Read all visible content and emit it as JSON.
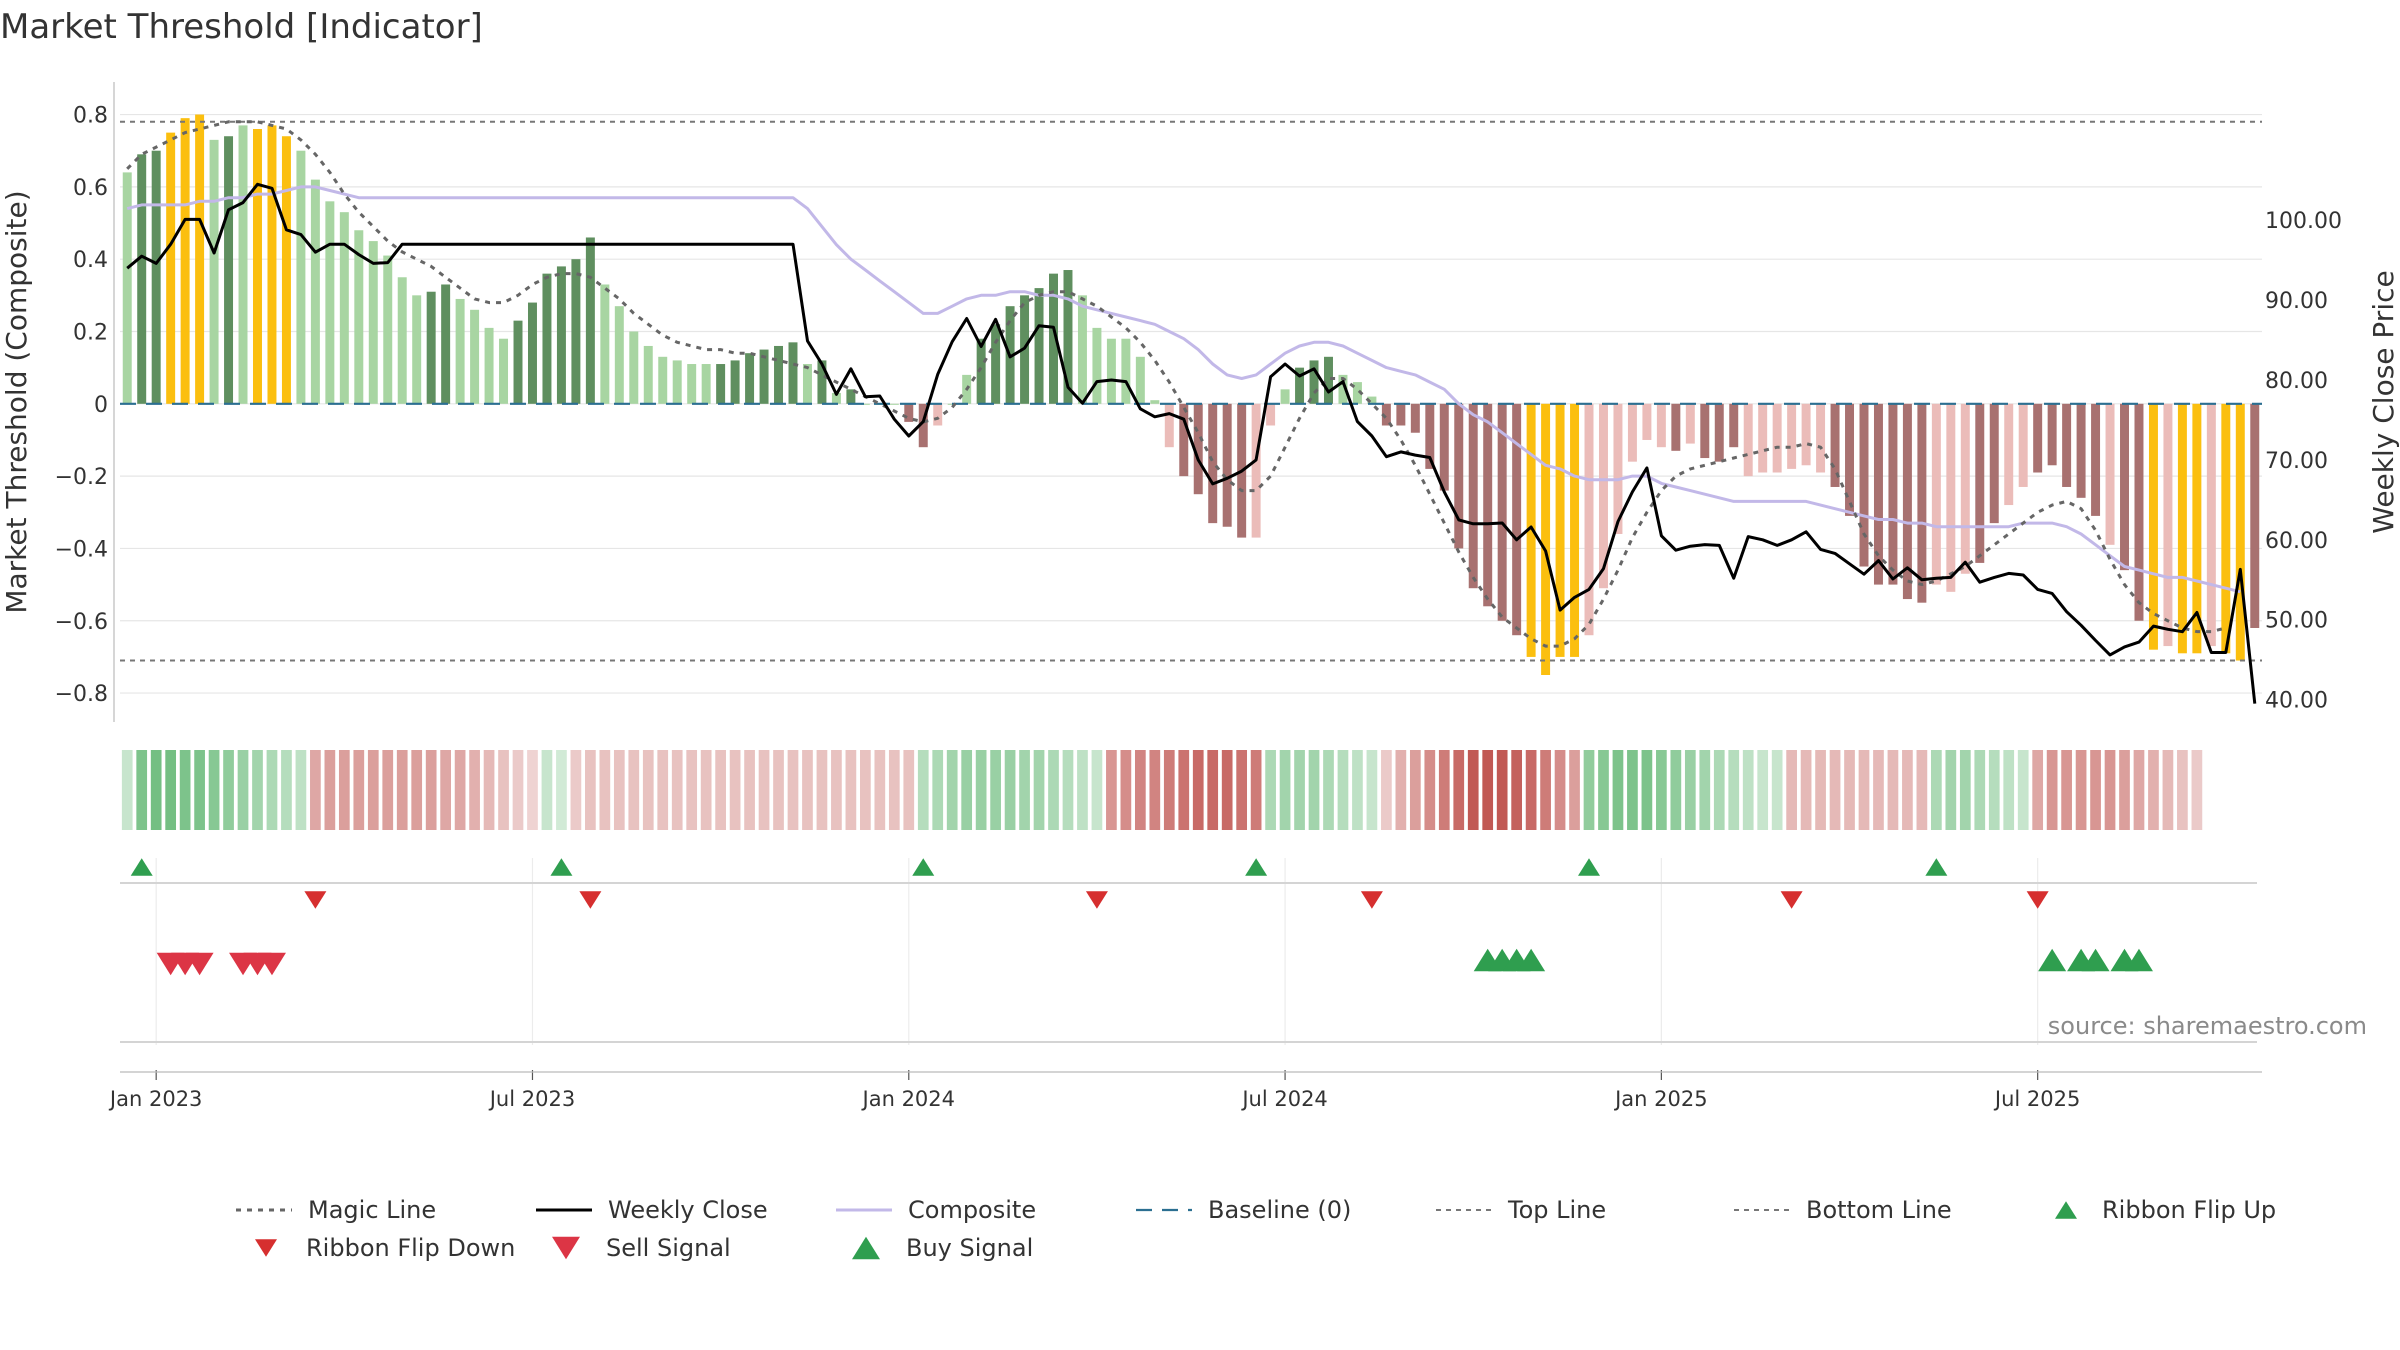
{
  "chart_data": {
    "type": "bar",
    "title": "Market Threshold [Indicator]",
    "ylabel": "Market Threshold (Composite)",
    "ylabel_right": "Weekly Close Price",
    "ylim": [
      -0.88,
      0.89
    ],
    "ylim_right": [
      37.2,
      117.3
    ],
    "yticks": [
      {
        "value": 0.8,
        "label": "0.8"
      },
      {
        "value": 0.6,
        "label": "0.6"
      },
      {
        "value": 0.4,
        "label": "0.4"
      },
      {
        "value": 0.2,
        "label": "0.2"
      },
      {
        "value": 0,
        "label": "0"
      },
      {
        "value": -0.2,
        "label": "−0.2"
      },
      {
        "value": -0.4,
        "label": "−0.4"
      },
      {
        "value": -0.6,
        "label": "−0.6"
      },
      {
        "value": -0.8,
        "label": "−0.8"
      }
    ],
    "yticks_right": [
      {
        "value": 100,
        "label": "100.00"
      },
      {
        "value": 90,
        "label": "90.00"
      },
      {
        "value": 80,
        "label": "80.00"
      },
      {
        "value": 70,
        "label": "70.00"
      },
      {
        "value": 60,
        "label": "60.00"
      },
      {
        "value": 50,
        "label": "50.00"
      },
      {
        "value": 40,
        "label": "40.00"
      }
    ],
    "xticks": [
      {
        "index": 2,
        "label": "Jan 2023"
      },
      {
        "index": 28,
        "label": "Jul 2023"
      },
      {
        "index": 54,
        "label": "Jan 2024"
      },
      {
        "index": 80,
        "label": "Jul 2024"
      },
      {
        "index": 106,
        "label": "Jan 2025"
      },
      {
        "index": 132,
        "label": "Jul 2025"
      }
    ],
    "grid": true,
    "legend_position": "bottom",
    "colors": {
      "strong_up": "#5f8f5f",
      "weak_up": "#a8d5a2",
      "extreme": "#fbbf0f",
      "strong_down": "#a87170",
      "weak_down": "#ebbcb9",
      "magic_line": "#666666",
      "weekly_close": "#000000",
      "composite": "#c2b8e8",
      "baseline": "#2b6f91",
      "threshold": "#777777",
      "flip_up": "#2f9e4f",
      "flip_down": "#d62f2f",
      "sell": "#dc3545",
      "buy": "#2f9e4f"
    },
    "thresholds": {
      "top": 0.78,
      "bottom": -0.71
    },
    "composite_bars": [
      0.64,
      0.69,
      0.7,
      0.75,
      0.79,
      0.8,
      0.73,
      0.74,
      0.77,
      0.76,
      0.77,
      0.74,
      0.7,
      0.62,
      0.56,
      0.53,
      0.48,
      0.45,
      0.41,
      0.35,
      0.3,
      0.31,
      0.33,
      0.29,
      0.26,
      0.21,
      0.18,
      0.23,
      0.28,
      0.36,
      0.38,
      0.4,
      0.46,
      0.33,
      0.27,
      0.2,
      0.16,
      0.13,
      0.12,
      0.11,
      0.11,
      0.11,
      0.12,
      0.14,
      0.15,
      0.16,
      0.17,
      0.11,
      0.12,
      0.03,
      0.04,
      0,
      0,
      0,
      -0.05,
      -0.12,
      -0.06,
      0,
      0.08,
      0.18,
      0.22,
      0.27,
      0.3,
      0.32,
      0.36,
      0.37,
      0.3,
      0.21,
      0.18,
      0.18,
      0.13,
      0.01,
      -0.12,
      -0.2,
      -0.25,
      -0.33,
      -0.34,
      -0.37,
      -0.37,
      -0.06,
      0.04,
      0.1,
      0.12,
      0.13,
      0.08,
      0.06,
      0.02,
      -0.06,
      -0.06,
      -0.08,
      -0.18,
      -0.24,
      -0.4,
      -0.51,
      -0.56,
      -0.6,
      -0.64,
      -0.7,
      -0.75,
      -0.7,
      -0.7,
      -0.64,
      -0.51,
      -0.36,
      -0.16,
      -0.1,
      -0.12,
      -0.13,
      -0.11,
      -0.15,
      -0.16,
      -0.12,
      -0.2,
      -0.19,
      -0.19,
      -0.18,
      -0.17,
      -0.19,
      -0.23,
      -0.31,
      -0.45,
      -0.5,
      -0.5,
      -0.54,
      -0.55,
      -0.5,
      -0.52,
      -0.47,
      -0.44,
      -0.33,
      -0.28,
      -0.23,
      -0.19,
      -0.17,
      -0.23,
      -0.26,
      -0.31,
      -0.39,
      -0.46,
      -0.6,
      -0.68,
      -0.67,
      -0.69,
      -0.69,
      -0.67,
      -0.69,
      -0.71,
      -0.62
    ],
    "bar_class": [
      "weak_up",
      "strong_up",
      "strong_up",
      "extreme",
      "extreme",
      "extreme",
      "weak_up",
      "strong_up",
      "weak_up",
      "extreme",
      "extreme",
      "extreme",
      "weak_up",
      "weak_up",
      "weak_up",
      "weak_up",
      "weak_up",
      "weak_up",
      "weak_up",
      "weak_up",
      "weak_up",
      "strong_up",
      "strong_up",
      "weak_up",
      "weak_up",
      "weak_up",
      "weak_up",
      "strong_up",
      "strong_up",
      "strong_up",
      "strong_up",
      "strong_up",
      "strong_up",
      "weak_up",
      "weak_up",
      "weak_up",
      "weak_up",
      "weak_up",
      "weak_up",
      "weak_up",
      "weak_up",
      "strong_up",
      "strong_up",
      "strong_up",
      "strong_up",
      "strong_up",
      "strong_up",
      "weak_up",
      "strong_up",
      "weak_up",
      "strong_up",
      "weak_up",
      "weak_up",
      "weak_up",
      "strong_down",
      "strong_down",
      "weak_down",
      "weak_up",
      "weak_up",
      "strong_up",
      "strong_up",
      "strong_up",
      "strong_up",
      "strong_up",
      "strong_up",
      "strong_up",
      "weak_up",
      "weak_up",
      "weak_up",
      "weak_up",
      "weak_up",
      "weak_up",
      "weak_down",
      "strong_down",
      "strong_down",
      "strong_down",
      "strong_down",
      "strong_down",
      "weak_down",
      "weak_down",
      "weak_up",
      "strong_up",
      "strong_up",
      "strong_up",
      "weak_up",
      "weak_up",
      "weak_up",
      "strong_down",
      "strong_down",
      "strong_down",
      "strong_down",
      "strong_down",
      "strong_down",
      "strong_down",
      "strong_down",
      "strong_down",
      "strong_down",
      "extreme",
      "extreme",
      "extreme",
      "extreme",
      "weak_down",
      "weak_down",
      "weak_down",
      "weak_down",
      "weak_down",
      "weak_down",
      "strong_down",
      "weak_down",
      "strong_down",
      "strong_down",
      "strong_down",
      "weak_down",
      "weak_down",
      "weak_down",
      "weak_down",
      "weak_down",
      "weak_down",
      "strong_down",
      "strong_down",
      "strong_down",
      "strong_down",
      "strong_down",
      "strong_down",
      "strong_down",
      "weak_down",
      "weak_down",
      "weak_down",
      "strong_down",
      "strong_down",
      "weak_down",
      "weak_down",
      "strong_down",
      "strong_down",
      "strong_down",
      "strong_down",
      "strong_down",
      "weak_down",
      "strong_down",
      "strong_down",
      "extreme",
      "weak_down",
      "extreme",
      "extreme",
      "weak_down",
      "extreme",
      "extreme",
      "strong_down"
    ],
    "series": [
      {
        "name": "Magic Line",
        "axis": "left",
        "values": [
          0.65,
          0.69,
          0.71,
          0.73,
          0.75,
          0.76,
          0.77,
          0.78,
          0.78,
          0.78,
          0.77,
          0.76,
          0.73,
          0.69,
          0.64,
          0.58,
          0.53,
          0.49,
          0.45,
          0.42,
          0.4,
          0.38,
          0.35,
          0.32,
          0.29,
          0.28,
          0.28,
          0.3,
          0.33,
          0.35,
          0.36,
          0.36,
          0.35,
          0.32,
          0.29,
          0.25,
          0.22,
          0.19,
          0.17,
          0.16,
          0.15,
          0.15,
          0.14,
          0.14,
          0.13,
          0.12,
          0.11,
          0.1,
          0.08,
          0.06,
          0.04,
          0.02,
          0,
          -0.02,
          -0.04,
          -0.05,
          -0.04,
          -0.01,
          0.04,
          0.1,
          0.17,
          0.23,
          0.28,
          0.3,
          0.31,
          0.31,
          0.29,
          0.27,
          0.24,
          0.21,
          0.17,
          0.12,
          0.06,
          -0.01,
          -0.08,
          -0.16,
          -0.21,
          -0.24,
          -0.24,
          -0.2,
          -0.12,
          -0.04,
          0.03,
          0.07,
          0.07,
          0.04,
          0,
          -0.04,
          -0.1,
          -0.17,
          -0.25,
          -0.33,
          -0.41,
          -0.48,
          -0.54,
          -0.59,
          -0.62,
          -0.65,
          -0.67,
          -0.67,
          -0.65,
          -0.61,
          -0.54,
          -0.46,
          -0.37,
          -0.3,
          -0.24,
          -0.2,
          -0.18,
          -0.17,
          -0.16,
          -0.15,
          -0.14,
          -0.13,
          -0.12,
          -0.12,
          -0.11,
          -0.12,
          -0.18,
          -0.27,
          -0.36,
          -0.42,
          -0.46,
          -0.49,
          -0.5,
          -0.49,
          -0.47,
          -0.45,
          -0.42,
          -0.39,
          -0.36,
          -0.33,
          -0.3,
          -0.28,
          -0.27,
          -0.29,
          -0.35,
          -0.43,
          -0.5,
          -0.55,
          -0.58,
          -0.6,
          -0.62,
          -0.63,
          -0.63,
          -0.62
        ]
      },
      {
        "name": "Weekly Close",
        "axis": "right",
        "values": [
          94.0,
          95.5,
          94.6,
          97.0,
          100.1,
          100.1,
          95.9,
          101.3,
          102.2,
          104.5,
          104.0,
          98.8,
          98.2,
          96.0,
          97.0,
          97.0,
          95.7,
          94.6,
          94.7,
          97.0,
          97.0,
          97.0,
          97.0,
          97.0,
          97.0,
          97.0,
          97.0,
          97.0,
          97.0,
          97.0,
          97.0,
          97.0,
          97.0,
          97.0,
          97.0,
          97.0,
          97.0,
          97.0,
          97.0,
          97.0,
          97.0,
          97.0,
          97.0,
          97.0,
          97.0,
          97.0,
          97.0,
          84.9,
          82.0,
          78.2,
          81.4,
          77.9,
          78.0,
          75.1,
          73.0,
          74.8,
          80.7,
          84.8,
          87.7,
          84.2,
          87.6,
          82.9,
          84.0,
          86.8,
          86.6,
          79.1,
          77.1,
          79.8,
          80.0,
          79.8,
          76.4,
          75.4,
          75.8,
          75.1,
          70.0,
          67.0,
          67.7,
          68.6,
          70.0,
          80.4,
          82.0,
          80.5,
          81.4,
          78.5,
          79.8,
          74.8,
          73.0,
          70.4,
          71.0,
          70.6,
          70.3,
          66.0,
          62.5,
          62.0,
          62.0,
          62.1,
          60.0,
          61.6,
          58.6,
          51.2,
          52.8,
          53.8,
          56.4,
          62.3,
          66.0,
          69.0,
          60.5,
          58.7,
          59.2,
          59.4,
          59.3,
          55.2,
          60.4,
          60.0,
          59.3,
          60.0,
          61.0,
          58.8,
          58.3,
          57.0,
          55.7,
          57.4,
          55.1,
          56.5,
          55.0,
          55.2,
          55.3,
          57.2,
          54.7,
          55.3,
          55.8,
          55.6,
          53.8,
          53.3,
          51.0,
          49.3,
          47.4,
          45.6,
          46.6,
          47.2,
          49.2,
          48.8,
          48.5,
          50.9,
          45.9,
          45.9,
          56.3,
          39.5
        ]
      },
      {
        "name": "Composite",
        "axis": "left",
        "values": [
          0.54,
          0.55,
          0.55,
          0.55,
          0.55,
          0.56,
          0.56,
          0.57,
          0.57,
          0.58,
          0.58,
          0.59,
          0.6,
          0.6,
          0.59,
          0.58,
          0.57,
          0.57,
          0.57,
          0.57,
          0.57,
          0.57,
          0.57,
          0.57,
          0.57,
          0.57,
          0.57,
          0.57,
          0.57,
          0.57,
          0.57,
          0.57,
          0.57,
          0.57,
          0.57,
          0.57,
          0.57,
          0.57,
          0.57,
          0.57,
          0.57,
          0.57,
          0.57,
          0.57,
          0.57,
          0.57,
          0.57,
          0.54,
          0.49,
          0.44,
          0.4,
          0.37,
          0.34,
          0.31,
          0.28,
          0.25,
          0.25,
          0.27,
          0.29,
          0.3,
          0.3,
          0.31,
          0.31,
          0.3,
          0.3,
          0.29,
          0.27,
          0.26,
          0.25,
          0.24,
          0.23,
          0.22,
          0.2,
          0.18,
          0.15,
          0.11,
          0.08,
          0.07,
          0.08,
          0.11,
          0.14,
          0.16,
          0.17,
          0.17,
          0.16,
          0.14,
          0.12,
          0.1,
          0.09,
          0.08,
          0.06,
          0.04,
          0,
          -0.03,
          -0.05,
          -0.08,
          -0.11,
          -0.14,
          -0.17,
          -0.18,
          -0.2,
          -0.21,
          -0.21,
          -0.21,
          -0.2,
          -0.2,
          -0.22,
          -0.23,
          -0.24,
          -0.25,
          -0.26,
          -0.27,
          -0.27,
          -0.27,
          -0.27,
          -0.27,
          -0.27,
          -0.28,
          -0.29,
          -0.3,
          -0.31,
          -0.32,
          -0.32,
          -0.33,
          -0.33,
          -0.34,
          -0.34,
          -0.34,
          -0.34,
          -0.34,
          -0.34,
          -0.33,
          -0.33,
          -0.33,
          -0.34,
          -0.36,
          -0.39,
          -0.42,
          -0.45,
          -0.46,
          -0.47,
          -0.48,
          -0.48,
          -0.49,
          -0.5,
          -0.51,
          -0.52
        ]
      }
    ],
    "ribbon": [
      0.3,
      0.7,
      0.75,
      0.75,
      0.7,
      0.7,
      0.65,
      0.6,
      0.55,
      0.5,
      0.45,
      0.4,
      0.35,
      -0.5,
      -0.55,
      -0.55,
      -0.55,
      -0.55,
      -0.55,
      -0.55,
      -0.55,
      -0.55,
      -0.5,
      -0.5,
      -0.45,
      -0.4,
      -0.35,
      -0.3,
      -0.25,
      0.3,
      0.25,
      -0.3,
      -0.35,
      -0.35,
      -0.35,
      -0.35,
      -0.35,
      -0.35,
      -0.35,
      -0.35,
      -0.35,
      -0.35,
      -0.35,
      -0.35,
      -0.35,
      -0.35,
      -0.35,
      -0.35,
      -0.35,
      -0.35,
      -0.35,
      -0.35,
      -0.35,
      -0.35,
      -0.35,
      0.4,
      0.45,
      0.5,
      0.55,
      0.55,
      0.55,
      0.55,
      0.5,
      0.5,
      0.45,
      0.4,
      0.35,
      0.3,
      -0.6,
      -0.65,
      -0.7,
      -0.7,
      -0.75,
      -0.8,
      -0.85,
      -0.85,
      -0.85,
      -0.8,
      -0.75,
      0.45,
      0.5,
      0.5,
      0.5,
      0.45,
      0.4,
      0.35,
      0.3,
      -0.3,
      -0.45,
      -0.55,
      -0.65,
      -0.75,
      -0.85,
      -0.95,
      -0.95,
      -0.95,
      -0.9,
      -0.85,
      -0.75,
      -0.65,
      -0.55,
      0.6,
      0.65,
      0.7,
      0.7,
      0.7,
      0.65,
      0.6,
      0.55,
      0.5,
      0.45,
      0.4,
      0.35,
      0.3,
      0.3,
      -0.4,
      -0.4,
      -0.4,
      -0.4,
      -0.4,
      -0.4,
      -0.4,
      -0.4,
      -0.4,
      -0.4,
      0.45,
      0.5,
      0.5,
      0.45,
      0.4,
      0.35,
      0.3,
      -0.5,
      -0.6,
      -0.6,
      -0.6,
      -0.6,
      -0.6,
      -0.55,
      -0.5,
      -0.45,
      -0.4,
      -0.35,
      -0.3
    ],
    "markers": {
      "ribbon_flip_up": [
        1,
        30,
        55,
        78,
        101,
        125
      ],
      "ribbon_flip_down": [
        13,
        32,
        67,
        86,
        115,
        132
      ],
      "sell_signal": [
        3,
        4,
        5,
        8,
        9,
        10
      ],
      "buy_signal": [
        94,
        95,
        96,
        97,
        133,
        135,
        136,
        138,
        139
      ]
    },
    "source": "source: sharemaestro.com",
    "legend": [
      {
        "key": "magic",
        "label": "Magic Line"
      },
      {
        "key": "close",
        "label": "Weekly Close"
      },
      {
        "key": "composite",
        "label": "Composite"
      },
      {
        "key": "baseline",
        "label": "Baseline (0)"
      },
      {
        "key": "top",
        "label": "Top Line"
      },
      {
        "key": "bottom",
        "label": "Bottom Line"
      },
      {
        "key": "flipup",
        "label": "Ribbon Flip Up"
      },
      {
        "key": "flipdown",
        "label": "Ribbon Flip Down"
      },
      {
        "key": "sell",
        "label": "Sell Signal"
      },
      {
        "key": "buy",
        "label": "Buy Signal"
      }
    ]
  }
}
